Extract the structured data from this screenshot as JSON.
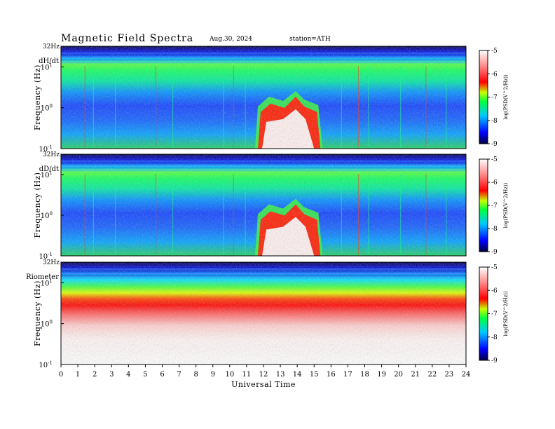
{
  "header": {
    "title": "Magnetic  Field  Spectra",
    "date": "Aug.30, 2024",
    "station": "station=ATH"
  },
  "chart_data": [
    {
      "type": "heatmap",
      "panel_label": "dH/dt",
      "ylabel": "Frequency  (Hz)",
      "y_scale": "log",
      "ylim": [
        0.1,
        32
      ],
      "y_ticks": [
        {
          "value": 32,
          "label": "32Hz"
        },
        {
          "value": 10,
          "base": "10",
          "exp": "1"
        },
        {
          "value": 1,
          "base": "10",
          "exp": "0"
        },
        {
          "value": 0.1,
          "base": "10",
          "exp": "-1"
        }
      ],
      "xlim": [
        0,
        24
      ],
      "colorbar": {
        "label": "log(PSD(V^2/Hz))",
        "range": [
          -9,
          -5
        ],
        "ticks": [
          "-5",
          "-6",
          "-7",
          "-8",
          "-9"
        ]
      },
      "features": [
        {
          "description": "enhanced broadband power",
          "x_range": [
            11.5,
            15.5
          ],
          "y_range": [
            0.1,
            3
          ]
        }
      ]
    },
    {
      "type": "heatmap",
      "panel_label": "dD/dt",
      "ylabel": "Frequency  (Hz)",
      "y_scale": "log",
      "ylim": [
        0.1,
        32
      ],
      "y_ticks": [
        {
          "value": 32,
          "label": "32Hz"
        },
        {
          "value": 10,
          "base": "10",
          "exp": "1"
        },
        {
          "value": 1,
          "base": "10",
          "exp": "0"
        },
        {
          "value": 0.1,
          "base": "10",
          "exp": "-1"
        }
      ],
      "xlim": [
        0,
        24
      ],
      "colorbar": {
        "label": "log(PSD(V^2/Hz))",
        "range": [
          -9,
          -5
        ],
        "ticks": [
          "-5",
          "-6",
          "-7",
          "-8",
          "-9"
        ]
      },
      "features": [
        {
          "description": "enhanced broadband power",
          "x_range": [
            11.5,
            15.5
          ],
          "y_range": [
            0.1,
            3
          ]
        }
      ]
    },
    {
      "type": "heatmap",
      "panel_label": "Riometer",
      "ylabel": "Frequency  (Hz)",
      "y_scale": "log",
      "ylim": [
        0.1,
        32
      ],
      "y_ticks": [
        {
          "value": 32,
          "label": "32Hz"
        },
        {
          "value": 10,
          "base": "10",
          "exp": "1"
        },
        {
          "value": 1,
          "base": "10",
          "exp": "0"
        },
        {
          "value": 0.1,
          "base": "10",
          "exp": "-1"
        }
      ],
      "xlim": [
        0,
        24
      ],
      "colorbar": {
        "label": "log(PSD(V^2/Hz))",
        "range": [
          -9,
          -5
        ],
        "ticks": [
          "-5",
          "-6",
          "-7",
          "-8",
          "-9"
        ]
      }
    }
  ],
  "x_axis": {
    "label": "Universal  Time",
    "ticks": [
      "0",
      "1",
      "2",
      "3",
      "4",
      "5",
      "6",
      "7",
      "8",
      "9",
      "10",
      "11",
      "12",
      "13",
      "14",
      "15",
      "16",
      "17",
      "18",
      "19",
      "20",
      "21",
      "22",
      "23",
      "24"
    ]
  },
  "colors": {
    "scale": [
      "#000040",
      "#0000ff",
      "#00ffff",
      "#00ff00",
      "#ffff00",
      "#ff0000",
      "#ffffff"
    ]
  }
}
